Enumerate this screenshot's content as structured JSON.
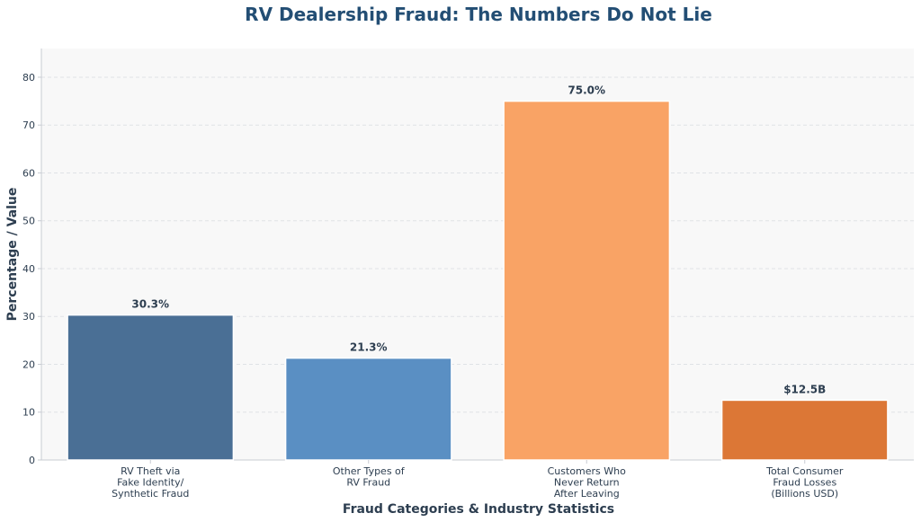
{
  "chart_data": {
    "type": "bar",
    "title": "RV Dealership Fraud: The Numbers Do Not Lie",
    "xlabel": "Fraud Categories & Industry Statistics",
    "ylabel": "Percentage / Value",
    "ylim": [
      0,
      86
    ],
    "yticks": [
      0,
      10,
      20,
      30,
      40,
      50,
      60,
      70,
      80
    ],
    "grid": true,
    "categories": [
      [
        "RV Theft via",
        "Fake Identity/",
        "Synthetic Fraud"
      ],
      [
        "Other Types of",
        "RV Fraud"
      ],
      [
        "Customers Who",
        "Never Return",
        "After Leaving"
      ],
      [
        "Total Consumer",
        "Fraud Losses",
        "(Billions USD)"
      ]
    ],
    "values": [
      30.3,
      21.3,
      75.0,
      12.5
    ],
    "data_labels": [
      "30.3%",
      "21.3%",
      "75.0%",
      "$12.5B"
    ],
    "colors": [
      "#4a6f95",
      "#5a8fc3",
      "#f9a365",
      "#dc7736"
    ]
  }
}
